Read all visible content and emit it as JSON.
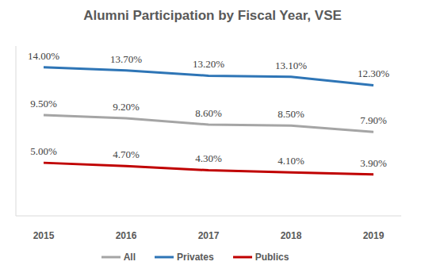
{
  "chart_data": {
    "type": "line",
    "title": "Alumni Participation by Fiscal Year, VSE",
    "categories": [
      "2015",
      "2016",
      "2017",
      "2018",
      "2019"
    ],
    "series": [
      {
        "name": "Privates",
        "color": "#2e75b6",
        "values": [
          14.0,
          13.7,
          13.2,
          13.1,
          12.3
        ],
        "value_labels": [
          "14.00%",
          "13.70%",
          "13.20%",
          "13.10%",
          "12.30%"
        ]
      },
      {
        "name": "All",
        "color": "#a5a5a5",
        "values": [
          9.5,
          9.2,
          8.6,
          8.5,
          7.9
        ],
        "value_labels": [
          "9.50%",
          "9.20%",
          "8.60%",
          "8.50%",
          "7.90%"
        ]
      },
      {
        "name": "Publics",
        "color": "#c00000",
        "values": [
          5.0,
          4.7,
          4.3,
          4.1,
          3.9
        ],
        "value_labels": [
          "5.00%",
          "4.70%",
          "4.30%",
          "4.10%",
          "3.90%"
        ]
      }
    ],
    "ylim": [
      0,
      16
    ],
    "tick_labels": "x",
    "grid": false,
    "legend": "bottom",
    "marker": "none",
    "data_labels": true
  }
}
